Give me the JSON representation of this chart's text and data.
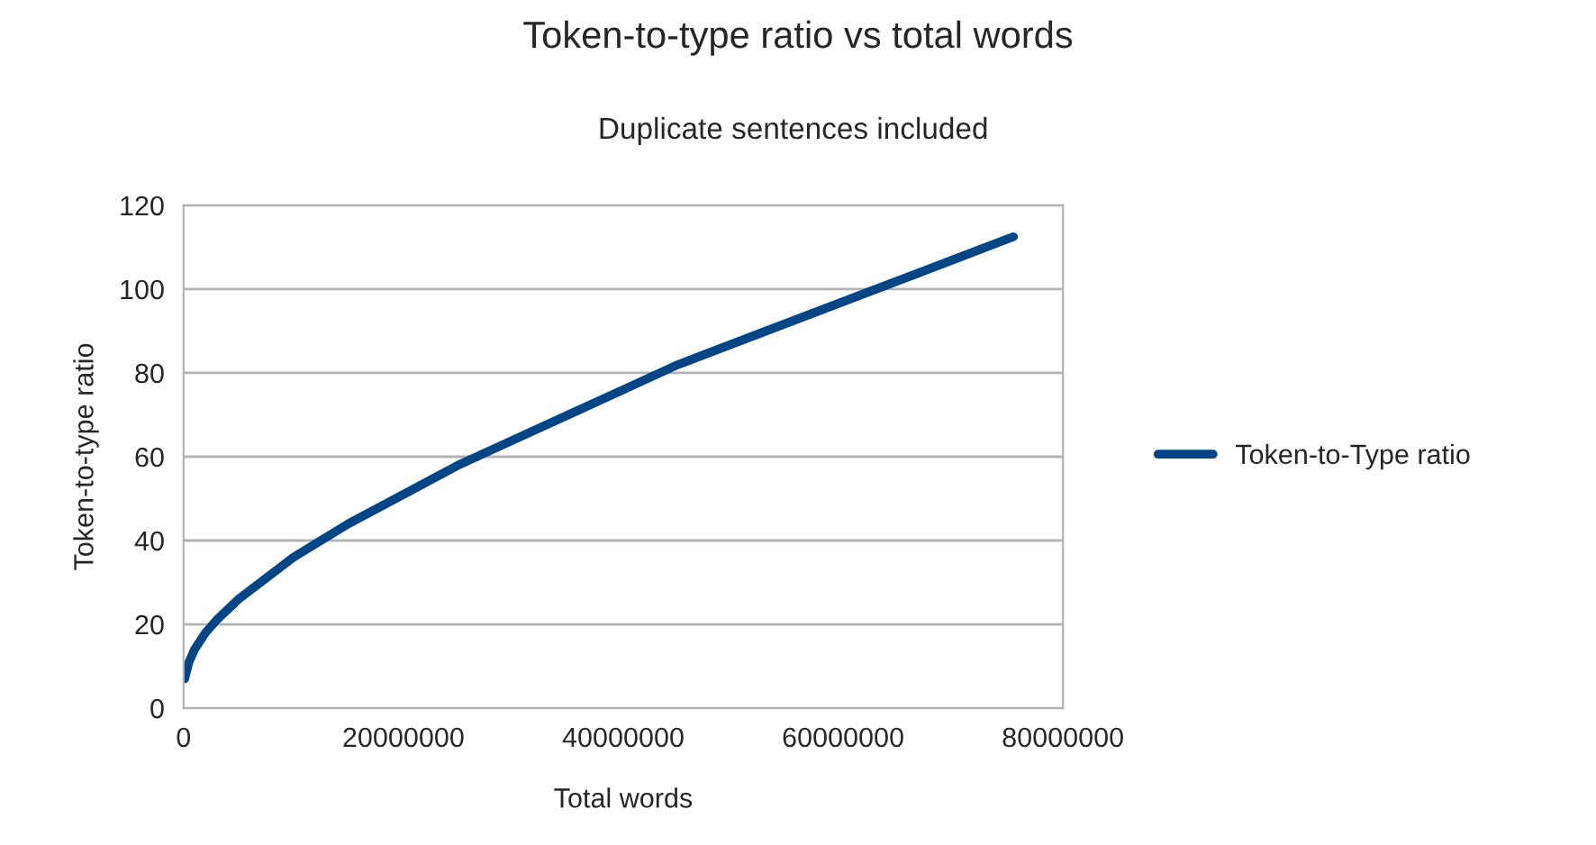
{
  "chart_data": {
    "type": "line",
    "title": "Token-to-type ratio vs total words",
    "subtitle": "Duplicate sentences included",
    "xlabel": "Total words",
    "ylabel": "Token-to-type ratio",
    "x": [
      100000,
      500000,
      1000000,
      2000000,
      3000000,
      5000000,
      7500000,
      10000000,
      15000000,
      20000000,
      25000000,
      30000000,
      35000000,
      40000000,
      45000000,
      50000000,
      55000000,
      60000000,
      65000000,
      70000000,
      75500000
    ],
    "series": [
      {
        "name": "Token-to-Type ratio",
        "color": "#004586",
        "values": [
          7,
          11,
          14,
          18,
          21,
          26,
          31,
          36,
          44,
          51,
          58,
          64,
          70,
          76,
          82,
          87,
          92,
          97,
          102,
          107,
          112.5
        ]
      }
    ],
    "xlim": [
      0,
      80000000
    ],
    "xticks": [
      0,
      20000000,
      40000000,
      60000000,
      80000000
    ],
    "ylim": [
      0,
      120
    ],
    "yticks": [
      0,
      20,
      40,
      60,
      80,
      100,
      120
    ],
    "grid": "y",
    "legend": "right",
    "marker": "none",
    "line_style": "solid"
  }
}
